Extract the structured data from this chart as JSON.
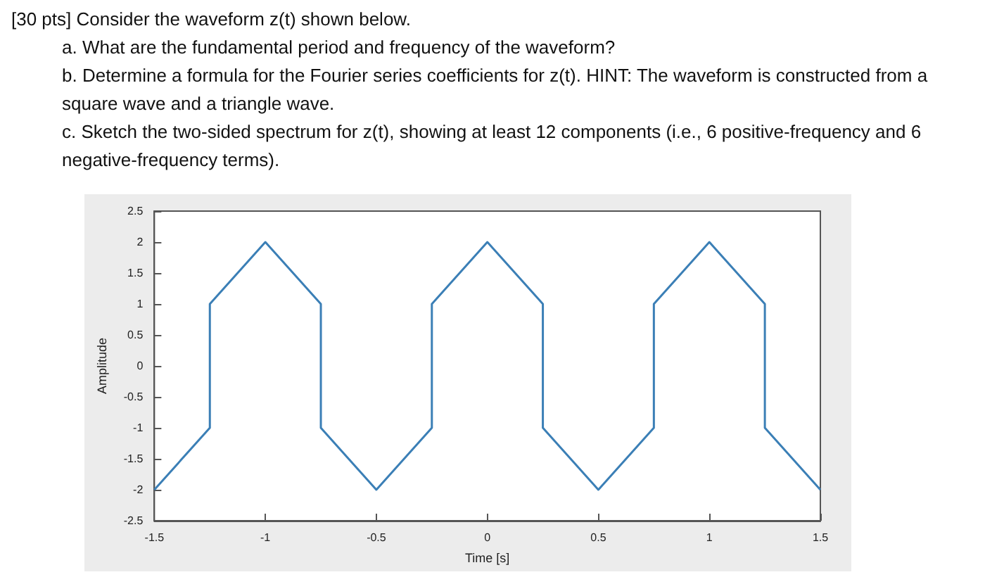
{
  "chart_data": {
    "type": "line",
    "title": "[30 pts] Consider the waveform z(t) shown below.",
    "annotations": [
      "a.  What are the fundamental period and frequency of the waveform?",
      "b.  Determine a formula for the Fourier series coefficients for z(t). HINT: The waveform is constructed from a square wave and a triangle wave.",
      "c.  Sketch the two-sided spectrum for z(t), showing at least 12 components (i.e., 6 positive-frequency and 6 negative-frequency terms)."
    ],
    "xlabel": "Time [s]",
    "ylabel": "Amplitude",
    "x": [
      -1.5,
      -1.25,
      -1.25,
      -1,
      -0.75,
      -0.75,
      -0.5,
      -0.25,
      -0.25,
      0,
      0.25,
      0.25,
      0.5,
      0.75,
      0.75,
      1,
      1.25,
      1.25,
      1.5
    ],
    "series": [
      {
        "color": "#3b7fb6",
        "values": [
          -2,
          -1,
          1,
          2,
          1,
          -1,
          -2,
          -1,
          1,
          2,
          1,
          -1,
          -2,
          -1,
          1,
          2,
          1,
          -1,
          -2
        ]
      }
    ],
    "xlim": [
      -1.5,
      1.5
    ],
    "xticks": [
      -1.5,
      -1,
      -0.5,
      0,
      0.5,
      1,
      1.5
    ],
    "ylim": [
      -2.5,
      2.5
    ],
    "yticks": [
      -2.5,
      -2,
      -1.5,
      -1,
      -0.5,
      0,
      0.5,
      1,
      1.5,
      2,
      2.5
    ],
    "grid": false,
    "marker": "none",
    "line_style": "solid"
  }
}
